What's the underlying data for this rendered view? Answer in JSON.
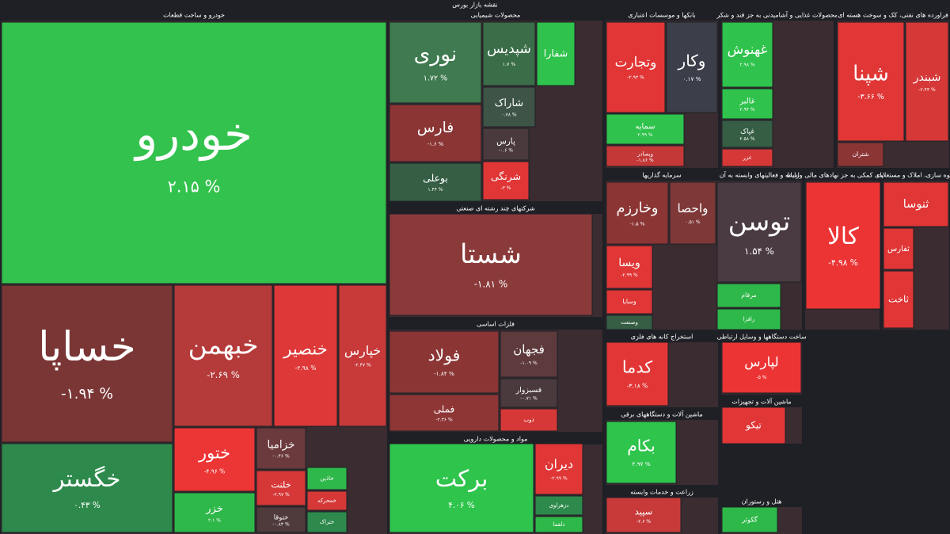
{
  "chart_data": {
    "type": "treemap",
    "title": "نقشه بازار بورس",
    "sectors": [
      {
        "name": "خودرو و ساخت قطعات",
        "tiles": [
          {
            "name": "خودرو",
            "value": 2.15,
            "value_label": "۲.۱۵ %",
            "color": "#33c24d"
          },
          {
            "name": "خساپا",
            "value": -1.94,
            "value_label": "-۱.۹۴ %",
            "color": "#7a3535"
          },
          {
            "name": "خگستر",
            "value": 0.43,
            "value_label": "۰.۴۳ %",
            "color": "#2e8a4c"
          },
          {
            "name": "خبهمن",
            "value": -2.69,
            "value_label": "-۲.۶۹ %",
            "color": "#b53a3a"
          },
          {
            "name": "خنصير",
            "value": -2.98,
            "value_label": "-۲.۹۸ %",
            "color": "#de3838"
          },
          {
            "name": "خپارس",
            "value": -2.47,
            "value_label": "-۲.۴۷ %",
            "color": "#c83a3a"
          },
          {
            "name": "ختور",
            "value": -4.96,
            "value_label": "-۴.۹۶ %",
            "color": "#ec3535"
          },
          {
            "name": "خزر",
            "value": 2.1,
            "value_label": "۲.۱ %",
            "color": "#2fb84a"
          },
          {
            "name": "خزامیا",
            "value": -0.46,
            "value_label": "-۰.۴۶ %",
            "color": "#6b3a3c"
          },
          {
            "name": "خلنت",
            "value": -2.97,
            "value_label": "-۲.۹۷ %",
            "color": "#d63838"
          },
          {
            "name": "ختوقا",
            "value": -0.83,
            "value_label": "-۰.۸۳ %",
            "color": "#4f3a3c"
          },
          {
            "name": "خاذین",
            "color": "#2fb84a"
          },
          {
            "name": "خمحرکه",
            "color": "#d63838"
          },
          {
            "name": "ختراک",
            "color": "#2e8a4c"
          }
        ]
      },
      {
        "name": "محصولات شیمیایی",
        "tiles": [
          {
            "name": "نوری",
            "value": 1.72,
            "value_label": "۱.۷۲ %",
            "color": "#3f7a50"
          },
          {
            "name": "شپدیس",
            "value": 1.7,
            "value_label": "۱.۷ %",
            "color": "#3a6e48"
          },
          {
            "name": "فارس",
            "value": -1.6,
            "value_label": "-۱.۶ %",
            "color": "#8b3535"
          },
          {
            "name": "بوعلی",
            "value": 1.44,
            "value_label": "۱.۴۴ %",
            "color": "#355e45"
          },
          {
            "name": "شاراک",
            "value": 0.78,
            "value_label": "۰.۷۸ %",
            "color": "#3d5446"
          },
          {
            "name": "پارس",
            "value": -0.6,
            "value_label": "-۰.۶ %",
            "color": "#4a3a3e"
          },
          {
            "name": "شرنگی",
            "value": -3,
            "value_label": "-۳ %",
            "color": "#e03636"
          },
          {
            "name": "شفارا",
            "color": "#2fc24c"
          }
        ]
      },
      {
        "name": "شرکتهای چند رشته ای صنعتی",
        "tiles": [
          {
            "name": "شستا",
            "value": -1.81,
            "value_label": "-۱.۸۱ %",
            "color": "#8b3a3a"
          }
        ]
      },
      {
        "name": "فلزات اساسی",
        "tiles": [
          {
            "name": "فولاد",
            "value": -1.84,
            "value_label": "-۱.۸۴ %",
            "color": "#8b3535"
          },
          {
            "name": "فملی",
            "value": -2.36,
            "value_label": "-۲.۳۶ %",
            "color": "#8e3636"
          },
          {
            "name": "فجهان",
            "value": -1.09,
            "value_label": "-۱.۰۹ %",
            "color": "#5e3a3c"
          },
          {
            "name": "فسبزوار",
            "value": -0.71,
            "value_label": "-۰.۷۱ %",
            "color": "#4a3a3e"
          },
          {
            "name": "ذوب",
            "color": "#d63838"
          }
        ]
      },
      {
        "name": "مواد و محصولات دارویی",
        "tiles": [
          {
            "name": "برکت",
            "value": 4.06,
            "value_label": "۴.۰۶ %",
            "color": "#2fc44c"
          },
          {
            "name": "دیران",
            "value": -2.99,
            "value_label": "-۲.۹۹ %",
            "color": "#e03636"
          },
          {
            "name": "دزهراوی",
            "color": "#2e8a4c"
          },
          {
            "name": "دلقما",
            "color": "#2fb84a"
          }
        ]
      },
      {
        "name": "بانکها و موسسات اعتباری",
        "tiles": [
          {
            "name": "وتجارت",
            "value": -2.93,
            "value_label": "-۲.۹۳ %",
            "color": "#e23636"
          },
          {
            "name": "وكار",
            "value": 0.17,
            "value_label": "۰.۱۷ %",
            "color": "#3c3f4a"
          },
          {
            "name": "سمایه",
            "value": 2.99,
            "value_label": "۲.۹۹ %",
            "color": "#2fc24c"
          },
          {
            "name": "وبصادر",
            "value": -1.86,
            "value_label": "-۱.۸۶ %",
            "color": "#c43838"
          }
        ]
      },
      {
        "name": "سرمایه گذاریها",
        "tiles": [
          {
            "name": "وخارزم",
            "value": -1.5,
            "value_label": "-۱.۵ %",
            "color": "#8b3535"
          },
          {
            "name": "واحصا",
            "value": 0.51,
            "value_label": "۰.۵۱ %",
            "color": "#7e3838"
          },
          {
            "name": "ویسا",
            "value": -2.99,
            "value_label": "-۲.۹۹ %",
            "color": "#e03636"
          },
          {
            "name": "وسایا",
            "color": "#e03636"
          },
          {
            "name": "وصنعت",
            "color": "#355e45"
          }
        ]
      },
      {
        "name": "استخراج کانه های فلزی",
        "tiles": [
          {
            "name": "کدما",
            "value": -3.18,
            "value_label": "-۳.۱۸ %",
            "color": "#e23636"
          }
        ]
      },
      {
        "name": "ماشین آلات و دستگاههای برقی",
        "tiles": [
          {
            "name": "بکام",
            "value": 4.97,
            "value_label": "۴.۹۷ %",
            "color": "#2fc44c"
          }
        ]
      },
      {
        "name": "زراعت و خدمات وابسته",
        "tiles": [
          {
            "name": "سپید",
            "value": -2.6,
            "value_label": "-۲.۶ %",
            "color": "#c83a3a"
          }
        ]
      },
      {
        "name": "محصولات غذایی و آشامیدنی به جز قند و شکر",
        "tiles": [
          {
            "name": "غهنوش",
            "value": 2.98,
            "value_label": "۲.۹۸ %",
            "color": "#2fc24c"
          },
          {
            "name": "غالبر",
            "value": 2.94,
            "value_label": "۲.۹۴ %",
            "color": "#2fc24c"
          },
          {
            "name": "غپاک",
            "value": 2.58,
            "value_label": "۲.۵۸ %",
            "color": "#355e45"
          },
          {
            "name": "غزر",
            "color": "#d63838"
          }
        ]
      },
      {
        "name": "رایانه و فعالیتهای وابسته به آن",
        "tiles": [
          {
            "name": "توسن",
            "value": 1.54,
            "value_label": "۱.۵۴ %",
            "color": "#4a3a42"
          },
          {
            "name": "مرقام",
            "color": "#2fb84a"
          },
          {
            "name": "رافزا",
            "color": "#2fb84a"
          }
        ]
      },
      {
        "name": "ساخت دستگاهها و وسایل ارتباطی",
        "tiles": [
          {
            "name": "لپارس",
            "value": -5,
            "value_label": "-۵ %",
            "color": "#ec3434"
          }
        ]
      },
      {
        "name": "ماشین آلات و تجهیزات",
        "tiles": [
          {
            "name": "تیکو",
            "color": "#e03636"
          }
        ]
      },
      {
        "name": "هتل و رستوران",
        "tiles": [
          {
            "name": "گکوثر",
            "color": "#2fb84a"
          }
        ]
      },
      {
        "name": "فراورده های نفتی، کک و سوخت هسته ای",
        "tiles": [
          {
            "name": "شپنا",
            "value": -3.66,
            "value_label": "-۳.۶۶ %",
            "color": "#e03636"
          },
          {
            "name": "شبندر",
            "value": -2.43,
            "value_label": "-۲.۴۳ %",
            "color": "#d63838"
          },
          {
            "name": "شتران",
            "color": "#8b3535"
          }
        ]
      },
      {
        "name": "فعالیتهای کمکی به جز نهادهای مالی واسط",
        "tiles": [
          {
            "name": "کالا",
            "value": -4.98,
            "value_label": "-۴.۹۸ %",
            "color": "#ec3434"
          }
        ]
      },
      {
        "name": "انبوه سازی، املاک و مستغلات",
        "tiles": [
          {
            "name": "ثنوسا",
            "color": "#e03636"
          },
          {
            "name": "ثفارس",
            "color": "#e03636"
          },
          {
            "name": "ثاخت",
            "color": "#e03636"
          }
        ]
      }
    ]
  }
}
